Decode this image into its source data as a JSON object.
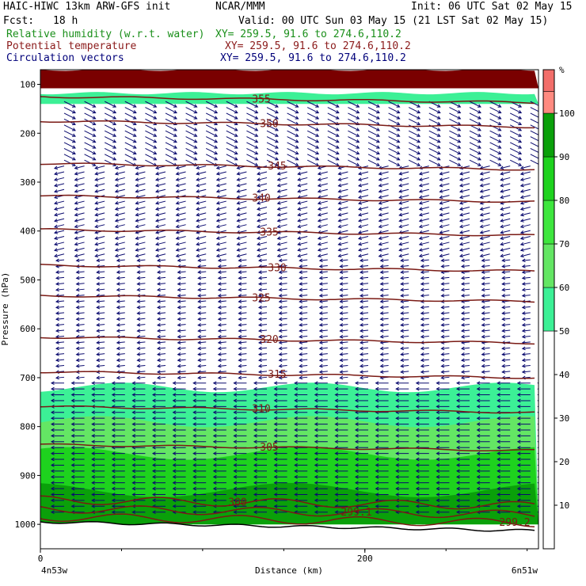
{
  "header": {
    "model": "HAIC-HIWC 13km ARW-GFS init",
    "org": "NCAR/MMM",
    "init": "Init: 06 UTC Sat 02 May 15",
    "fcst_label": "Fcst:",
    "fcst_value": "18 h",
    "valid": "Valid: 00 UTC Sun 03 May 15 (21 LST Sat 02 May 15)",
    "field1": "Relative humidity (w.r.t. water)",
    "field2": "Potential temperature",
    "field3": "Circulation vectors",
    "xy1": "XY= 259.5, 91.6 to 274.6,110.2",
    "xy2": "XY= 259.5, 91.6 to 274.6,110.2",
    "xy3": "XY= 259.5, 91.6 to 274.6,110.2"
  },
  "colors": {
    "field1": "#1a8f1a",
    "field2": "#8b1a1a",
    "field3": "#00007a",
    "contour": "#7a1a14",
    "vector": "#0a0a6e"
  },
  "chart_data": {
    "type": "heatmap",
    "xlabel": "Distance (km)",
    "ylabel": "Pressure (hPa)",
    "x_ticks": [
      "0",
      "200"
    ],
    "x_range": [
      0,
      307
    ],
    "y_range": [
      1050,
      70
    ],
    "y_scale": "linear",
    "y_ticks": [
      "100",
      "200",
      "300",
      "400",
      "500",
      "600",
      "700",
      "800",
      "900",
      "1000"
    ],
    "x_endpoints": [
      "4n53w",
      "6n51w"
    ],
    "colorbar": {
      "unit": "%",
      "labels": [
        "10",
        "20",
        "30",
        "40",
        "50",
        "60",
        "70",
        "80",
        "90",
        "100"
      ],
      "bins": [
        {
          "range": [
            0,
            50
          ],
          "color": "#ffffff"
        },
        {
          "range": [
            50,
            60
          ],
          "color": "#3cf096"
        },
        {
          "range": [
            60,
            70
          ],
          "color": "#64e664"
        },
        {
          "range": [
            70,
            80
          ],
          "color": "#3ee63e"
        },
        {
          "range": [
            80,
            90
          ],
          "color": "#1ed21e"
        },
        {
          "range": [
            90,
            100
          ],
          "color": "#0aa00a"
        },
        {
          "range": [
            100,
            105
          ],
          "color": "#ff8a80"
        },
        {
          "range": [
            105,
            110
          ],
          "color": "#f26e6a"
        }
      ]
    },
    "rh_regions": [
      {
        "name": "stratosphere-cap",
        "color": "#7a0000",
        "pressure_top": 70,
        "pressure_bottom": 108
      },
      {
        "name": "upper-moist-band",
        "color": "#3cf096",
        "pressure_top": 118,
        "pressure_bottom": 140
      },
      {
        "name": "low-level-moist",
        "color": "#3cf096",
        "pressure_top": 720,
        "pressure_bottom": 1000
      },
      {
        "name": "low-level-70",
        "color": "#64e664",
        "pressure_top": 790,
        "pressure_bottom": 1000
      },
      {
        "name": "low-level-80",
        "color": "#1ed21e",
        "pressure_top": 855,
        "pressure_bottom": 1000
      },
      {
        "name": "boundary-layer-90",
        "color": "#0aa00a",
        "pressure_top": 930,
        "pressure_bottom": 1000
      }
    ],
    "theta_contours": [
      {
        "label": "355",
        "pressure": 125
      },
      {
        "label": "350",
        "pressure": 175
      },
      {
        "label": "345",
        "pressure": 262
      },
      {
        "label": "340",
        "pressure": 328
      },
      {
        "label": "335",
        "pressure": 397
      },
      {
        "label": "330",
        "pressure": 470
      },
      {
        "label": "325",
        "pressure": 532
      },
      {
        "label": "320",
        "pressure": 617
      },
      {
        "label": "315",
        "pressure": 688
      },
      {
        "label": "310",
        "pressure": 759
      },
      {
        "label": "305",
        "pressure": 837
      },
      {
        "label": "300",
        "pressure": 950
      },
      {
        "label": "299.1",
        "pressure": 968
      },
      {
        "label": "299.2",
        "pressure": 985
      }
    ]
  }
}
